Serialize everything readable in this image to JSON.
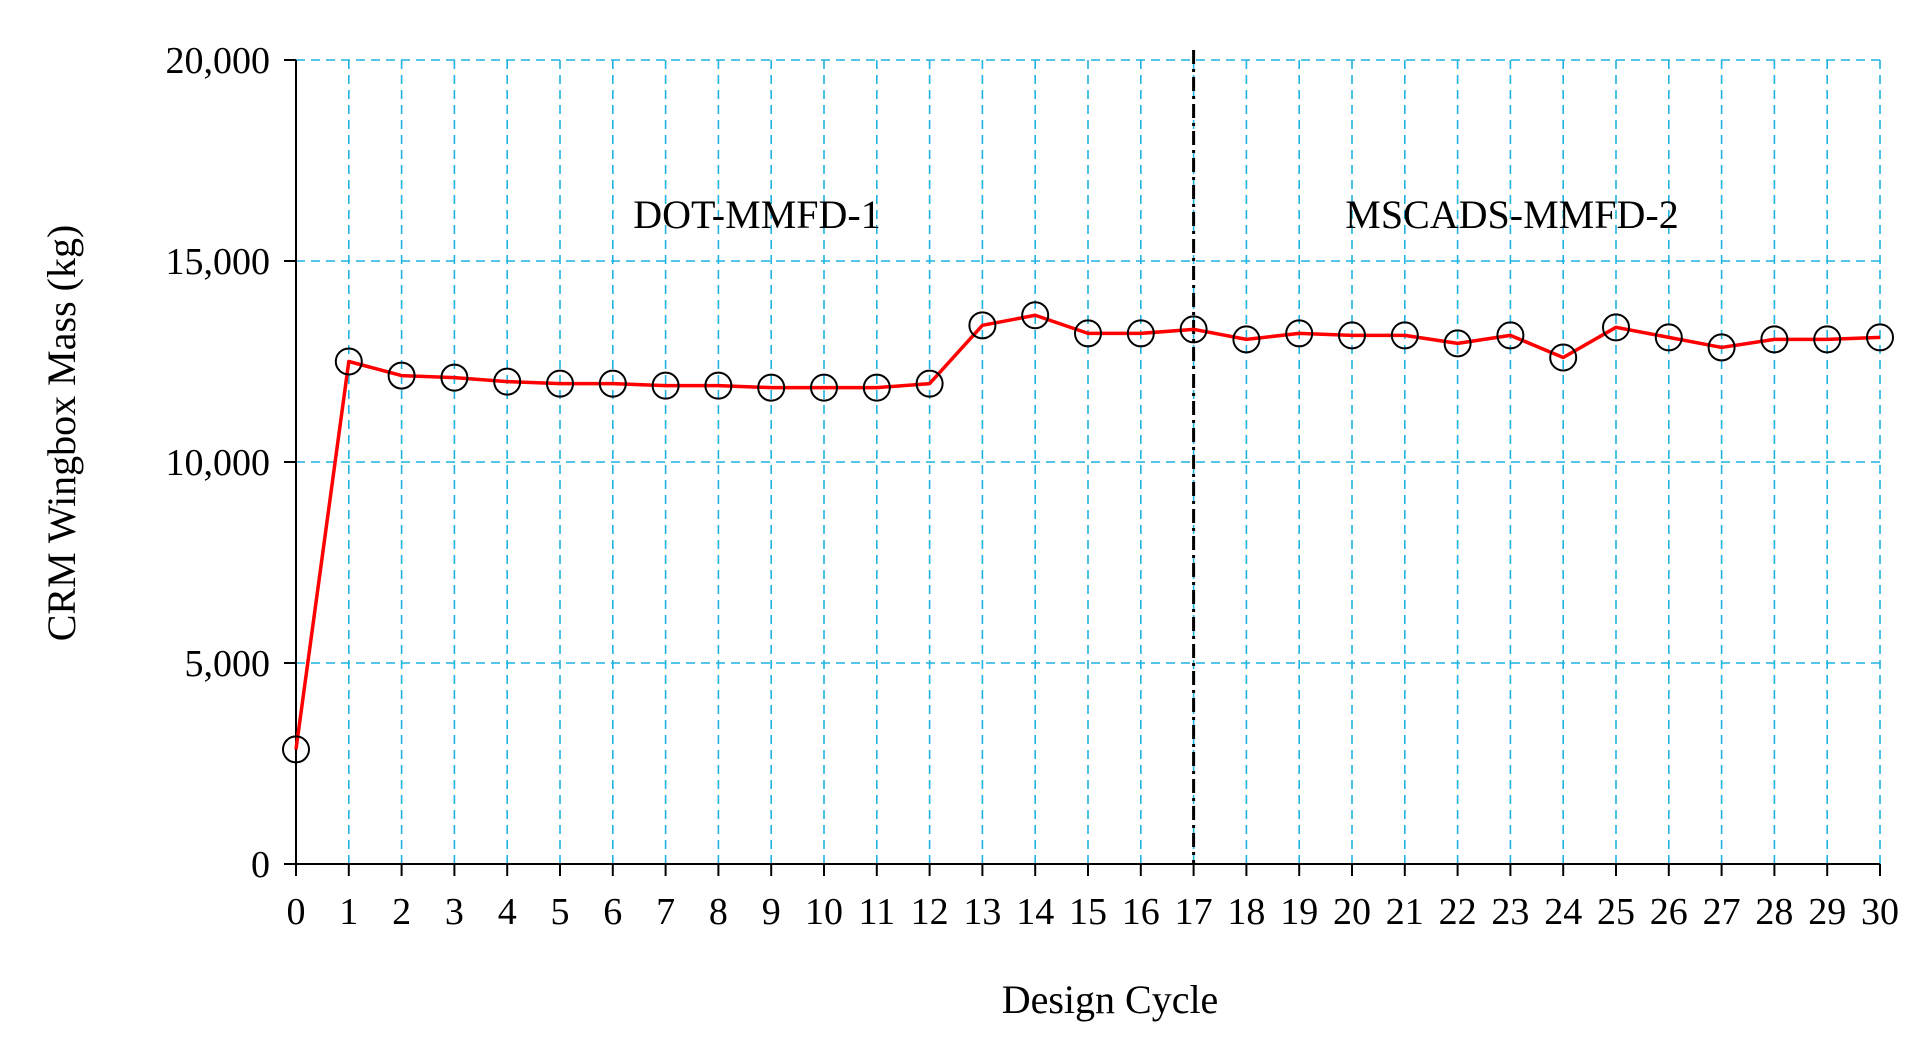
{
  "chart_data": {
    "type": "line",
    "title": "",
    "xlabel": "Design Cycle",
    "ylabel": "CRM  Wingbox Mass (kg)",
    "x": [
      0,
      1,
      2,
      3,
      4,
      5,
      6,
      7,
      8,
      9,
      10,
      11,
      12,
      13,
      14,
      15,
      16,
      17,
      18,
      19,
      20,
      21,
      22,
      23,
      24,
      25,
      26,
      27,
      28,
      29,
      30
    ],
    "series": [
      {
        "name": "",
        "values": [
          2850,
          12500,
          12150,
          12100,
          12000,
          11950,
          11950,
          11900,
          11900,
          11850,
          11850,
          11850,
          11950,
          13400,
          13650,
          13200,
          13200,
          13300,
          13050,
          13200,
          13150,
          13150,
          12950,
          13150,
          12600,
          13350,
          13100,
          12850,
          13050,
          13050,
          13100
        ]
      }
    ],
    "xlim": [
      0,
      30
    ],
    "ylim": [
      0,
      20000
    ],
    "x_tick_labels": [
      "0",
      "1",
      "2",
      "3",
      "4",
      "5",
      "6",
      "7",
      "8",
      "9",
      "10",
      "11",
      "12",
      "13",
      "14",
      "15",
      "16",
      "17",
      "18",
      "19",
      "20",
      "21",
      "22",
      "23",
      "24",
      "25",
      "26",
      "27",
      "28",
      "29",
      "30"
    ],
    "y_ticks": [
      0,
      5000,
      10000,
      15000,
      20000
    ],
    "y_tick_labels": [
      "0",
      "5,000",
      "10,000",
      "15,000",
      "20,000"
    ],
    "grid": true,
    "divider_x": 17,
    "annotations": [
      "DOT-MMFD-1",
      "MSCADS-MMFD-2"
    ],
    "colors": {
      "line": "#ff0000",
      "marker_edge": "#000000",
      "grid": "#1fb3e0",
      "axis": "#000000",
      "divider": "#000000"
    },
    "marker": "open-circle"
  }
}
